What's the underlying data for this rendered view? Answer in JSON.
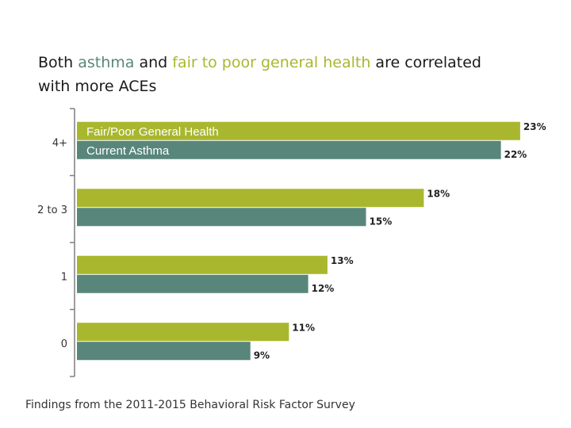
{
  "title": {
    "prefix": "Both",
    "asthma": "asthma",
    "and": "and",
    "fair": "fair to poor general health",
    "suffix_line1": "are correlated",
    "line2": "with more ACEs"
  },
  "footer": "Findings from the 2011-2015 Behavioral Risk Factor Survey",
  "colors": {
    "fair": "#a9b72f",
    "asthma": "#58867b",
    "axis": "#7f7f7f"
  },
  "chart_data": {
    "type": "bar",
    "orientation": "horizontal",
    "categories": [
      "4+",
      "2 to 3",
      "1",
      "0"
    ],
    "series": [
      {
        "name": "Fair/Poor General Health",
        "values": [
          23,
          18,
          13,
          11
        ],
        "labels": [
          "23%",
          "18%",
          "13%",
          "11%"
        ]
      },
      {
        "name": "Current Asthma",
        "values": [
          22,
          15,
          12,
          9
        ],
        "labels": [
          "22%",
          "15%",
          "12%",
          "9%"
        ]
      }
    ],
    "xlim": [
      0,
      25
    ],
    "legend": "top-left inside plot",
    "title": "Both asthma and fair to poor general health are correlated with more ACEs"
  }
}
